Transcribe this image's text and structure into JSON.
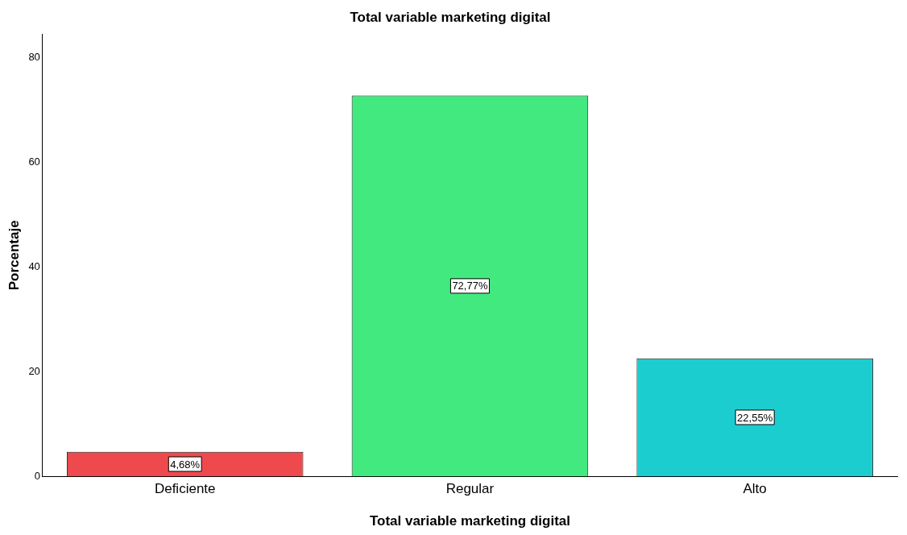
{
  "chart_data": {
    "type": "bar",
    "title": "Total variable marketing digital",
    "xlabel": "Total variable marketing digital",
    "ylabel": "Porcentaje",
    "categories": [
      "Deficiente",
      "Regular",
      "Alto"
    ],
    "values": [
      4.68,
      72.77,
      22.55
    ],
    "colors": [
      "#ee4a4d",
      "#42e97f",
      "#1ccdd0"
    ],
    "value_labels": [
      "4,68%",
      "72,77%",
      "22,55%"
    ],
    "ylim": [
      0,
      84.5
    ],
    "yticks": [
      0,
      20,
      40,
      60,
      80
    ],
    "grid": false,
    "legend": false
  }
}
